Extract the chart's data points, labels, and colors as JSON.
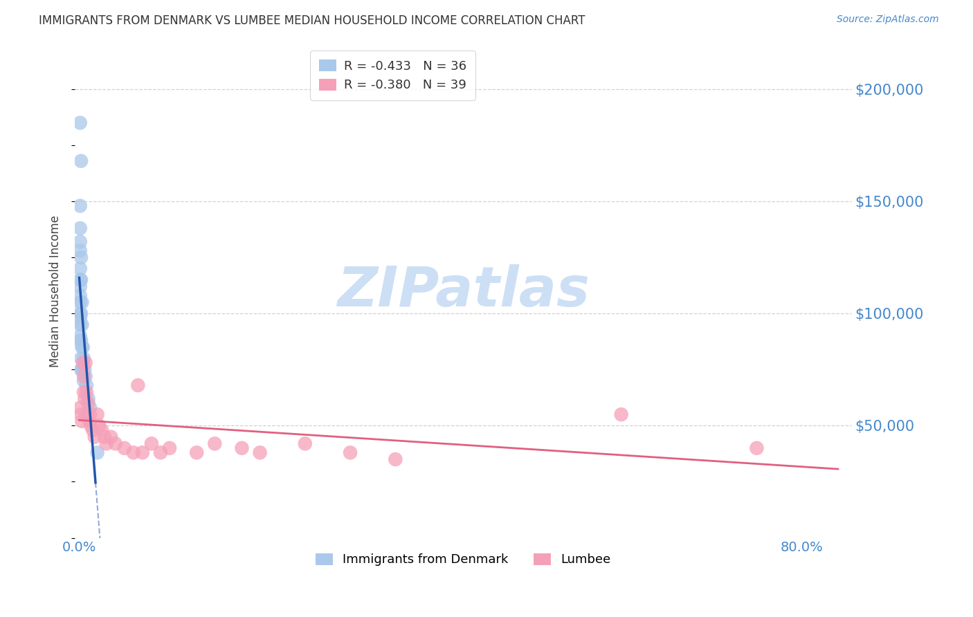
{
  "title": "IMMIGRANTS FROM DENMARK VS LUMBEE MEDIAN HOUSEHOLD INCOME CORRELATION CHART",
  "source": "Source: ZipAtlas.com",
  "ylabel": "Median Household Income",
  "background_color": "#ffffff",
  "denmark_color": "#aac8ea",
  "denmark_line_color": "#2255aa",
  "lumbee_color": "#f5a0b8",
  "lumbee_line_color": "#e06080",
  "title_color": "#333333",
  "ylabel_color": "#444444",
  "ytick_color": "#4488cc",
  "xtick_color": "#4488cc",
  "grid_color": "#cccccc",
  "legend_denmark_R": "-0.433",
  "legend_denmark_N": "36",
  "legend_lumbee_R": "-0.380",
  "legend_lumbee_N": "39",
  "ytick_values": [
    50000,
    100000,
    150000,
    200000
  ],
  "ytick_labels": [
    "$50,000",
    "$100,000",
    "$150,000",
    "$200,000"
  ],
  "ymin": 0,
  "ymax": 220000,
  "xmin": -0.005,
  "xmax": 0.855,
  "denmark_x": [
    0.001,
    0.002,
    0.001,
    0.001,
    0.001,
    0.001,
    0.001,
    0.001,
    0.001,
    0.001,
    0.001,
    0.001,
    0.001,
    0.001,
    0.001,
    0.001,
    0.002,
    0.002,
    0.002,
    0.002,
    0.002,
    0.002,
    0.003,
    0.003,
    0.003,
    0.003,
    0.004,
    0.004,
    0.005,
    0.005,
    0.006,
    0.007,
    0.008,
    0.01,
    0.012,
    0.02
  ],
  "denmark_y": [
    185000,
    168000,
    148000,
    138000,
    132000,
    128000,
    120000,
    115000,
    112000,
    108000,
    105000,
    100000,
    98000,
    95000,
    90000,
    88000,
    125000,
    115000,
    100000,
    88000,
    80000,
    75000,
    105000,
    95000,
    85000,
    75000,
    85000,
    75000,
    80000,
    70000,
    75000,
    72000,
    68000,
    62000,
    58000,
    38000
  ],
  "lumbee_x": [
    0.001,
    0.002,
    0.003,
    0.004,
    0.005,
    0.005,
    0.006,
    0.007,
    0.008,
    0.009,
    0.01,
    0.011,
    0.012,
    0.013,
    0.015,
    0.017,
    0.02,
    0.022,
    0.025,
    0.028,
    0.03,
    0.035,
    0.04,
    0.05,
    0.06,
    0.065,
    0.07,
    0.08,
    0.09,
    0.1,
    0.13,
    0.15,
    0.18,
    0.2,
    0.25,
    0.3,
    0.35,
    0.6,
    0.75
  ],
  "lumbee_y": [
    58000,
    55000,
    52000,
    78000,
    72000,
    65000,
    62000,
    78000,
    65000,
    55000,
    60000,
    52000,
    55000,
    50000,
    48000,
    45000,
    55000,
    50000,
    48000,
    45000,
    42000,
    45000,
    42000,
    40000,
    38000,
    68000,
    38000,
    42000,
    38000,
    40000,
    38000,
    42000,
    40000,
    38000,
    42000,
    38000,
    35000,
    55000,
    40000
  ]
}
